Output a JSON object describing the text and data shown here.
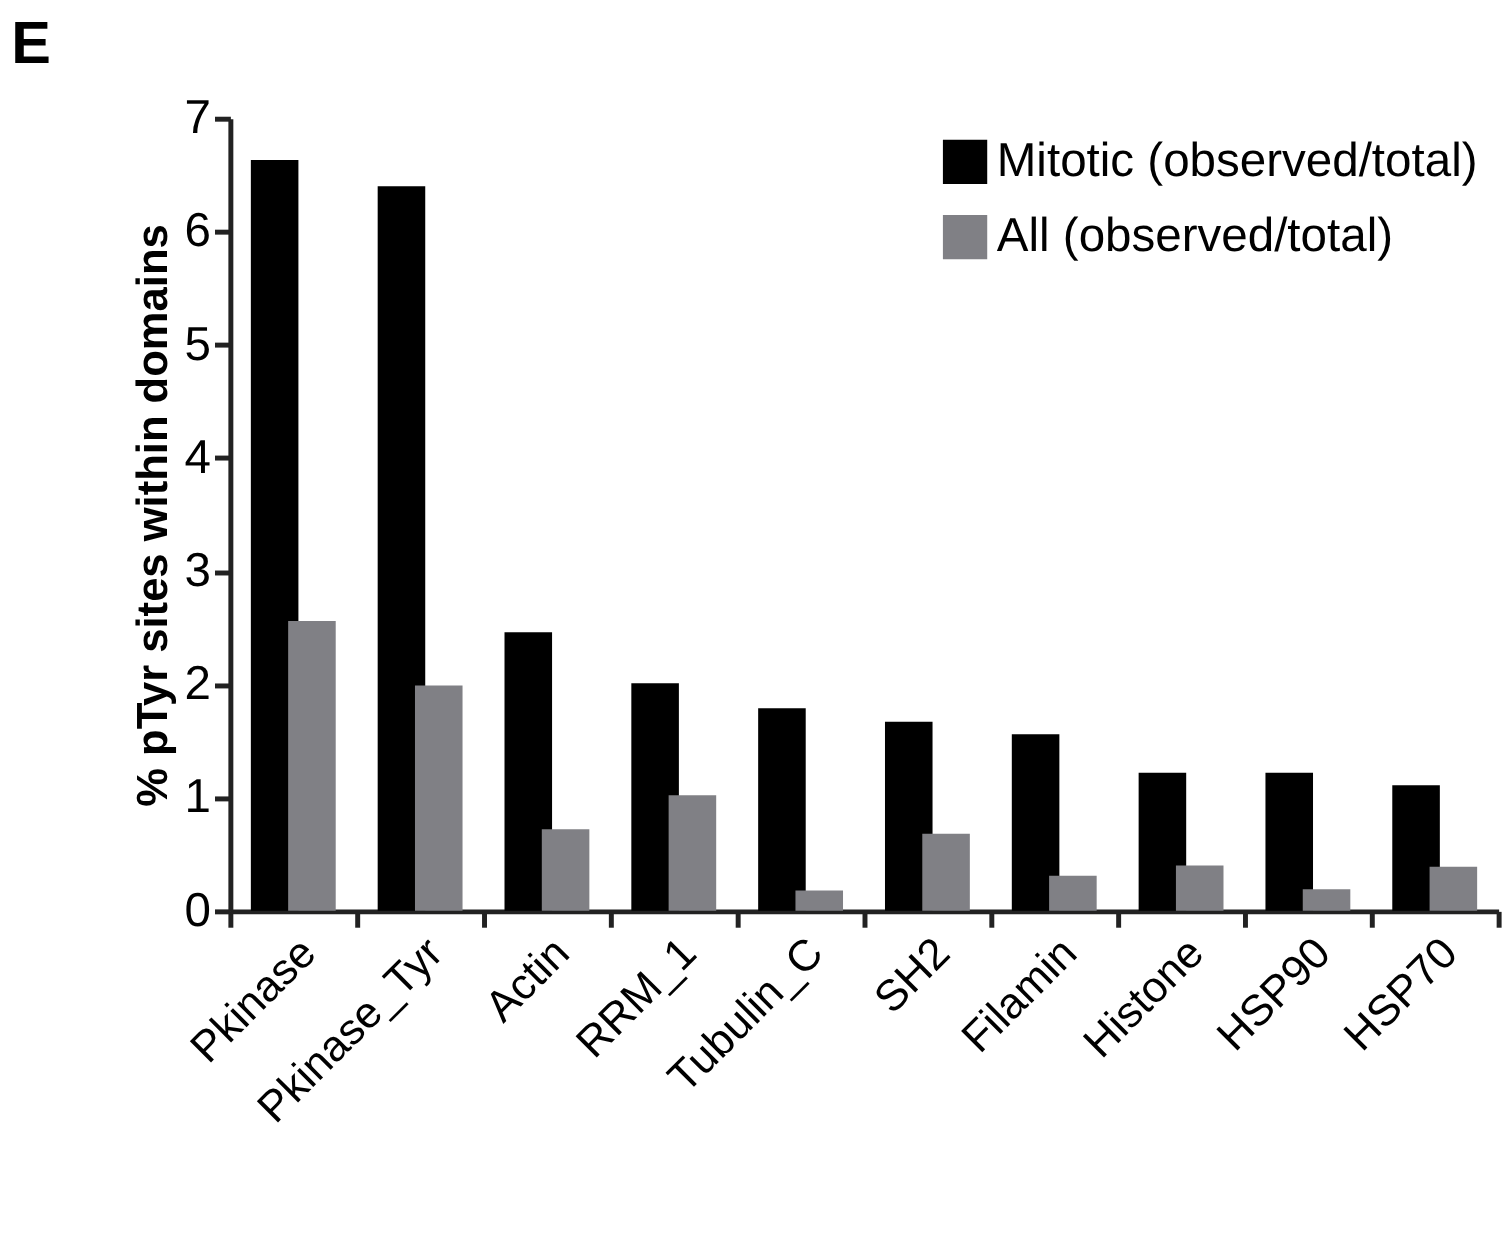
{
  "chart_data": {
    "type": "bar",
    "title": "E",
    "ylabel": "% pTyr sites within domains",
    "categories": [
      "Pkinase",
      "Pkinase_Tyr",
      "Actin",
      "RRM_1",
      "Tubulin_C",
      "SH2",
      "Filamin",
      "Histone",
      "HSP90",
      "HSP70"
    ],
    "series": [
      {
        "name": "Mitotic (observed/total)",
        "color": "#000000",
        "values": [
          6.63,
          6.4,
          2.46,
          2.01,
          1.79,
          1.67,
          1.56,
          1.22,
          1.22,
          1.11
        ]
      },
      {
        "name": "All (observed/total)",
        "color": "#808085",
        "values": [
          2.56,
          1.99,
          0.72,
          1.02,
          0.18,
          0.68,
          0.31,
          0.4,
          0.19,
          0.39
        ]
      }
    ],
    "ylim": [
      0,
      7
    ],
    "yticks": [
      0,
      1,
      2,
      3,
      4,
      5,
      6,
      7
    ],
    "grid": false,
    "legend": "top right"
  }
}
